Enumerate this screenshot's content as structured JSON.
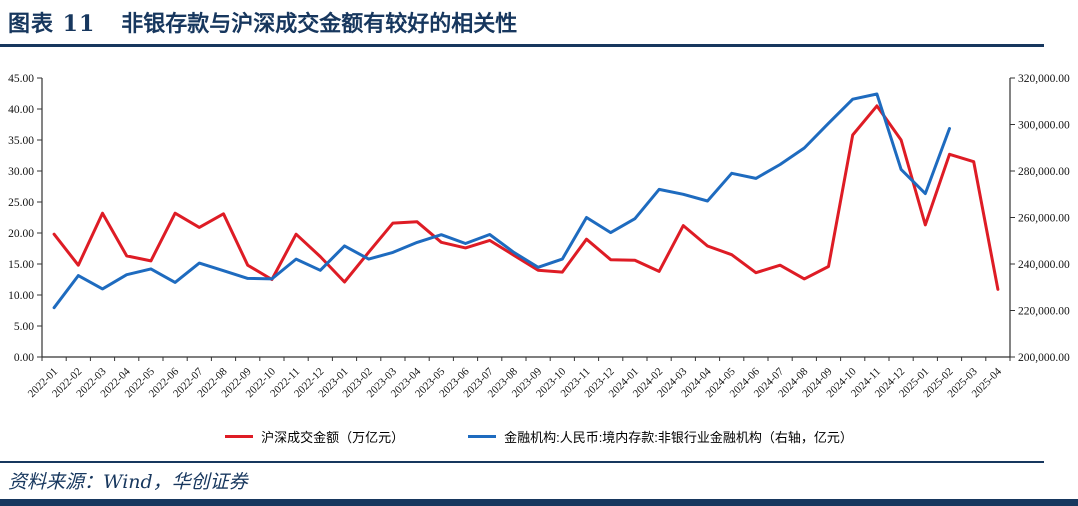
{
  "header": {
    "figure_label": "图表 11",
    "title": "非银存款与沪深成交金额有较好的相关性"
  },
  "footer": {
    "source": "资料来源：Wind，华创证券"
  },
  "colors": {
    "accent_navy": "#17375E",
    "series_red": "#DE1C25",
    "series_blue": "#1E6BBF",
    "axis": "#333333"
  },
  "chart_data": {
    "type": "line",
    "grid": false,
    "legend_position": "bottom",
    "categories": [
      "2022-01",
      "2022-02",
      "2022-03",
      "2022-04",
      "2022-05",
      "2022-06",
      "2022-07",
      "2022-08",
      "2022-09",
      "2022-10",
      "2022-11",
      "2022-12",
      "2023-01",
      "2023-02",
      "2023-03",
      "2023-04",
      "2023-05",
      "2023-06",
      "2023-07",
      "2023-08",
      "2023-09",
      "2023-10",
      "2023-11",
      "2023-12",
      "2024-01",
      "2024-02",
      "2024-03",
      "2024-04",
      "2024-05",
      "2024-06",
      "2024-07",
      "2024-08",
      "2024-09",
      "2024-10",
      "2024-11",
      "2024-12",
      "2025-01",
      "2025-02",
      "2025-03",
      "2025-04"
    ],
    "left_axis": {
      "min": 0,
      "max": 45,
      "step": 5,
      "labels": [
        "0.00",
        "5.00",
        "10.00",
        "15.00",
        "20.00",
        "25.00",
        "30.00",
        "35.00",
        "40.00",
        "45.00"
      ]
    },
    "right_axis": {
      "min": 200000,
      "max": 320000,
      "step": 20000,
      "labels": [
        "200,000.00",
        "220,000.00",
        "240,000.00",
        "260,000.00",
        "280,000.00",
        "300,000.00",
        "320,000.00"
      ]
    },
    "series": [
      {
        "name": "沪深成交金额（万亿元）",
        "axis": "left",
        "color": "#DE1C25",
        "values": [
          19.8,
          14.8,
          23.2,
          16.3,
          15.5,
          23.2,
          20.9,
          23.1,
          14.8,
          12.5,
          19.8,
          16.2,
          12.1,
          16.9,
          21.6,
          21.8,
          18.5,
          17.6,
          18.8,
          16.4,
          14.0,
          13.7,
          19.0,
          15.7,
          15.6,
          13.8,
          21.2,
          17.9,
          16.5,
          13.6,
          14.8,
          12.6,
          14.6,
          35.8,
          40.5,
          35.0,
          21.3,
          32.7,
          31.5,
          10.9
        ]
      },
      {
        "name": "金融机构:人民币:境内存款:非银行业金融机构（右轴，亿元）",
        "axis": "right",
        "color": "#1E6BBF",
        "values": [
          221200,
          235000,
          229300,
          235400,
          237900,
          232100,
          240400,
          237100,
          233800,
          233600,
          242100,
          237300,
          247800,
          242100,
          245000,
          249300,
          252600,
          248800,
          252700,
          245000,
          238600,
          242100,
          260000,
          253500,
          259500,
          272100,
          270000,
          267100,
          279000,
          276800,
          282800,
          289900,
          300500,
          310900,
          313100,
          280700,
          270300,
          298300,
          null,
          null
        ]
      }
    ]
  }
}
